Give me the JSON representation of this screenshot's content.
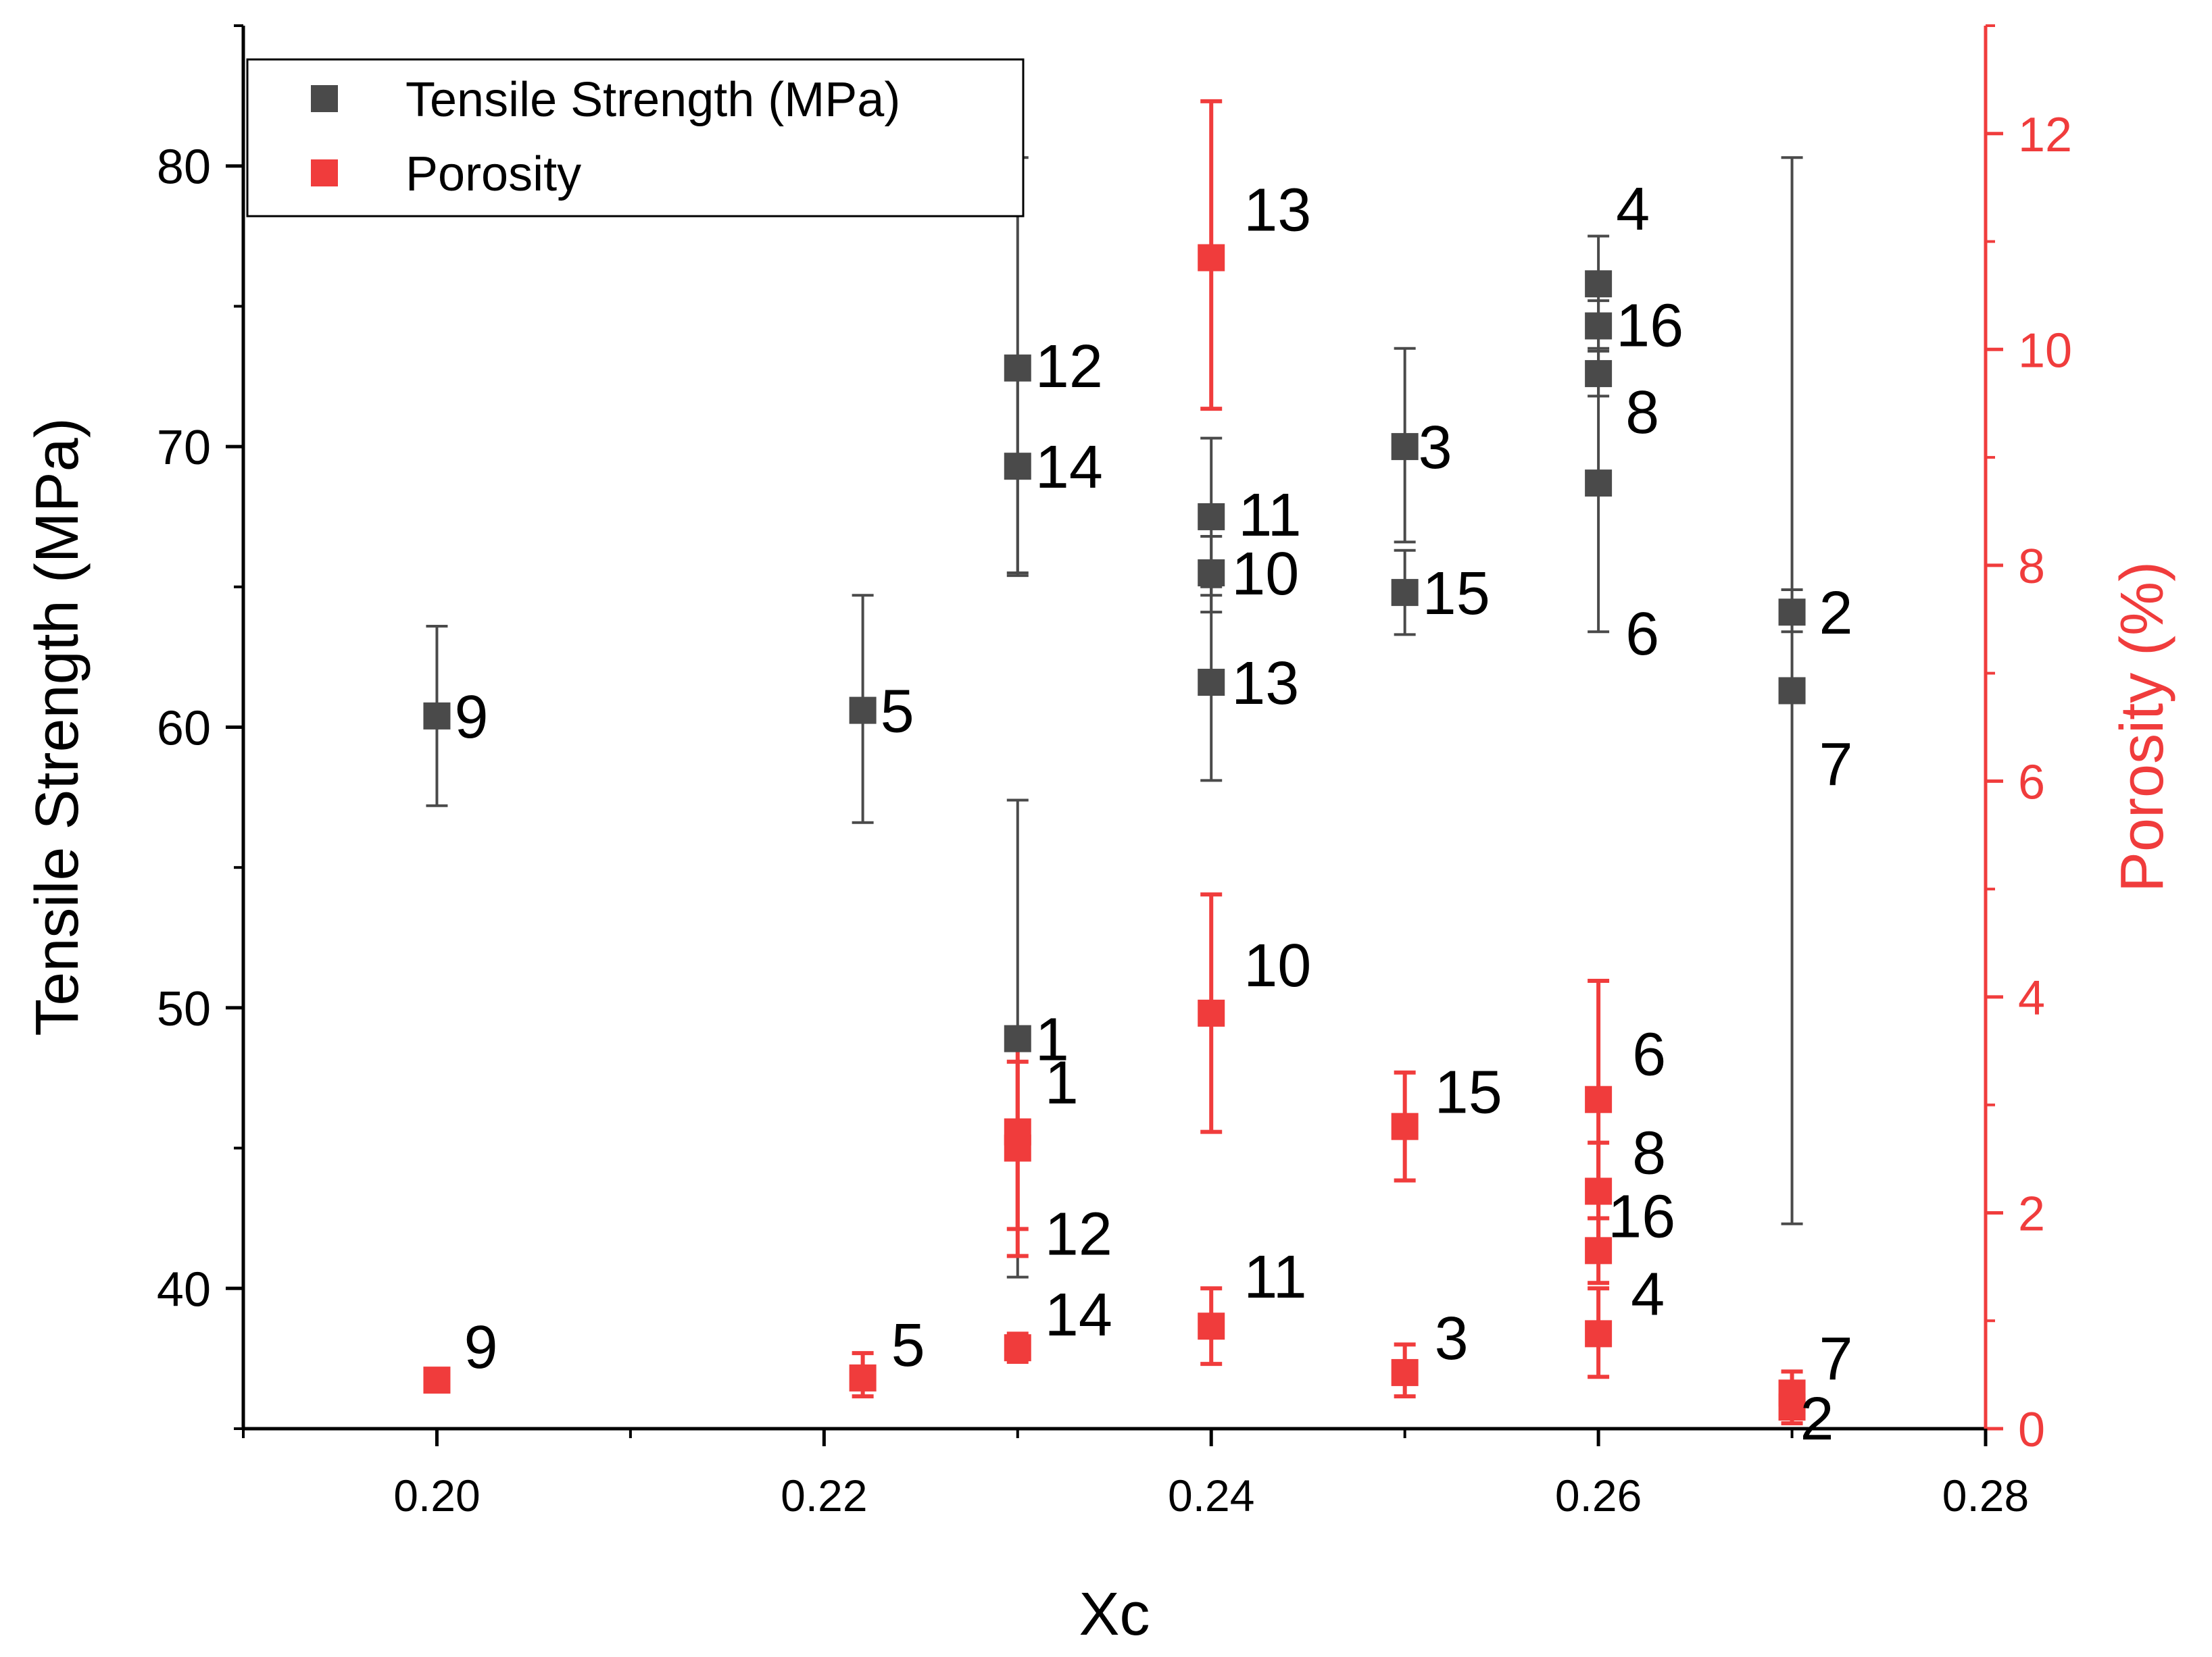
{
  "colors": {
    "tensile": "#4a4a4a",
    "porosity": "#f03c3c",
    "axis": "#000000"
  },
  "chart_data": {
    "type": "scatter",
    "xlabel": "Xc",
    "ylabel_left": "Tensile Strength (MPa)",
    "ylabel_right": "Porosity (%)",
    "xlim": [
      0.19,
      0.28
    ],
    "ylim_left": [
      35,
      85
    ],
    "ylim_right": [
      0,
      13
    ],
    "x_ticks": [
      0.2,
      0.22,
      0.24,
      0.26,
      0.28
    ],
    "x_tick_labels": [
      "0.20",
      "0.22",
      "0.24",
      "0.26",
      "0.28"
    ],
    "left_ticks": [
      40,
      50,
      60,
      70,
      80
    ],
    "left_tick_labels": [
      "40",
      "50",
      "60",
      "70",
      "80"
    ],
    "right_ticks": [
      0,
      2,
      4,
      6,
      8,
      10,
      12
    ],
    "right_tick_labels": [
      "0",
      "2",
      "4",
      "6",
      "8",
      "10",
      "12"
    ],
    "legend": {
      "position": "top-left",
      "entries": [
        "Tensile Strength (MPa)",
        "Porosity"
      ]
    },
    "series": [
      {
        "name": "Tensile Strength (MPa)",
        "axis": "left",
        "points": [
          {
            "label": "9",
            "x": 0.2,
            "y": 60.4,
            "err_low": 57.2,
            "err_high": 63.6
          },
          {
            "label": "5",
            "x": 0.222,
            "y": 60.6,
            "err_low": 56.6,
            "err_high": 64.7
          },
          {
            "label": "12",
            "x": 0.23,
            "y": 72.8,
            "err_low": 65.4,
            "err_high": 80.3
          },
          {
            "label": "14",
            "x": 0.23,
            "y": 69.3,
            "err_low": 65.5,
            "err_high": 73.0
          },
          {
            "label": "1",
            "x": 0.23,
            "y": 48.9,
            "err_low": 40.4,
            "err_high": 57.4
          },
          {
            "label": "11",
            "x": 0.24,
            "y": 67.5,
            "err_low": 64.7,
            "err_high": 70.3
          },
          {
            "label": "10",
            "x": 0.24,
            "y": 65.5,
            "err_low": 64.1,
            "err_high": 66.8
          },
          {
            "label": "13",
            "x": 0.24,
            "y": 61.6,
            "err_low": 58.1,
            "err_high": 65.0
          },
          {
            "label": "3",
            "x": 0.25,
            "y": 70.0,
            "err_low": 66.6,
            "err_high": 73.5
          },
          {
            "label": "15",
            "x": 0.25,
            "y": 64.8,
            "err_low": 63.3,
            "err_high": 66.3
          },
          {
            "label": "4",
            "x": 0.26,
            "y": 75.8,
            "err_low": 74.1,
            "err_high": 77.5
          },
          {
            "label": "16",
            "x": 0.26,
            "y": 74.3,
            "err_low": 73.5,
            "err_high": 75.2
          },
          {
            "label": "8",
            "x": 0.26,
            "y": 72.6,
            "err_low": 71.8,
            "err_high": 73.4
          },
          {
            "label": "6",
            "x": 0.26,
            "y": 68.7,
            "err_low": 63.4,
            "err_high": 74.1
          },
          {
            "label": "2",
            "x": 0.27,
            "y": 64.1,
            "err_low": 63.4,
            "err_high": 64.9
          },
          {
            "label": "7",
            "x": 0.27,
            "y": 61.3,
            "err_low": 42.3,
            "err_high": 80.3
          }
        ]
      },
      {
        "name": "Porosity",
        "axis": "right",
        "points": [
          {
            "label": "9",
            "x": 0.2,
            "y": 0.45,
            "err_low": 0.4,
            "err_high": 0.5
          },
          {
            "label": "5",
            "x": 0.222,
            "y": 0.47,
            "err_low": 0.3,
            "err_high": 0.7
          },
          {
            "label": "1",
            "x": 0.23,
            "y": 2.75,
            "err_low": 1.85,
            "err_high": 3.6
          },
          {
            "label": "12",
            "x": 0.23,
            "y": 2.6,
            "err_low": 1.6,
            "err_high": 3.4
          },
          {
            "label": "14",
            "x": 0.23,
            "y": 0.75,
            "err_low": 0.62,
            "err_high": 0.88
          },
          {
            "label": "13",
            "x": 0.24,
            "y": 10.85,
            "err_low": 9.45,
            "err_high": 12.3
          },
          {
            "label": "10",
            "x": 0.24,
            "y": 3.85,
            "err_low": 2.75,
            "err_high": 4.95
          },
          {
            "label": "11",
            "x": 0.24,
            "y": 0.95,
            "err_low": 0.6,
            "err_high": 1.3
          },
          {
            "label": "15",
            "x": 0.25,
            "y": 2.8,
            "err_low": 2.3,
            "err_high": 3.3
          },
          {
            "label": "3",
            "x": 0.25,
            "y": 0.52,
            "err_low": 0.3,
            "err_high": 0.78
          },
          {
            "label": "6",
            "x": 0.26,
            "y": 3.05,
            "err_low": 1.95,
            "err_high": 4.15
          },
          {
            "label": "8",
            "x": 0.26,
            "y": 2.2,
            "err_low": 1.75,
            "err_high": 2.65
          },
          {
            "label": "16",
            "x": 0.26,
            "y": 1.65,
            "err_low": 1.35,
            "err_high": 1.95
          },
          {
            "label": "4",
            "x": 0.26,
            "y": 0.88,
            "err_low": 0.48,
            "err_high": 1.3
          },
          {
            "label": "7",
            "x": 0.27,
            "y": 0.33,
            "err_low": 0.18,
            "err_high": 0.53
          },
          {
            "label": "2",
            "x": 0.27,
            "y": 0.2,
            "err_low": 0.05,
            "err_high": 0.35
          }
        ]
      }
    ]
  }
}
